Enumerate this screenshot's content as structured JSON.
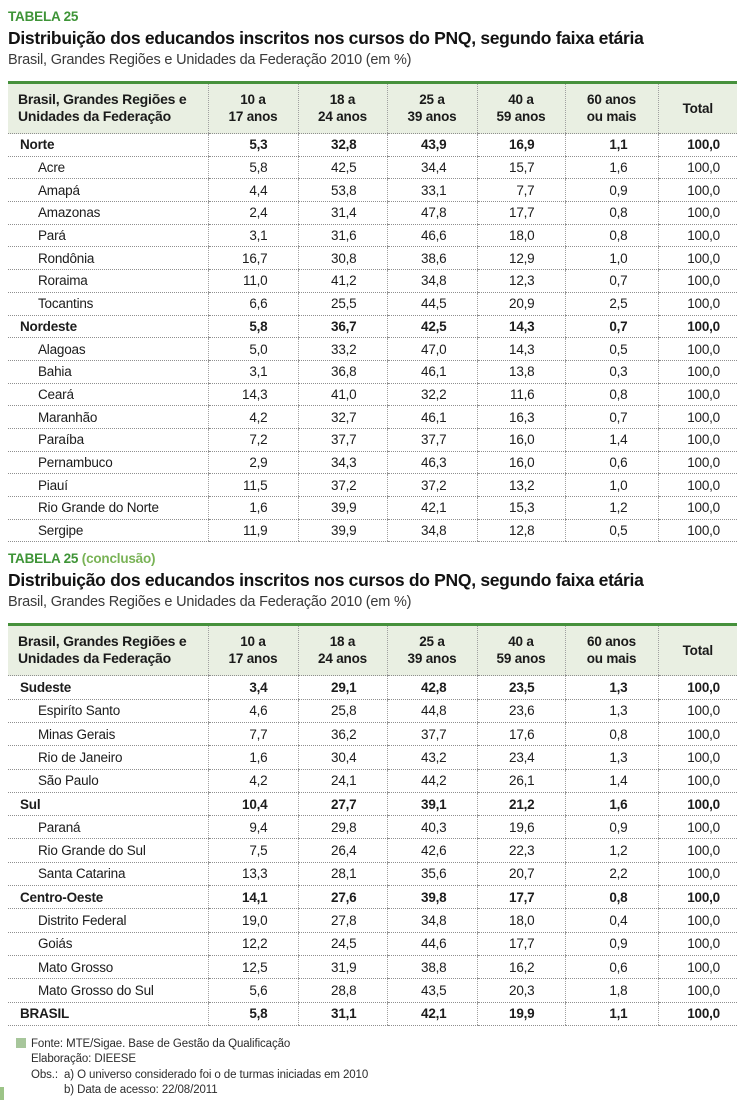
{
  "colors": {
    "accent_green": "#3e9437",
    "accent_green_light": "#79b356",
    "table_border_green": "#46913c",
    "header_band_bg": "#e9efe2",
    "note_bullet_green": "#a7c69b"
  },
  "table1": {
    "tag": "TABELA 25",
    "tag_suffix": "",
    "title": "Distribuição dos educandos inscritos nos cursos do PNQ, segundo faixa etária",
    "subtitle": "Brasil, Grandes Regiões e Unidades da Federação 2010 (em %)",
    "row_header": [
      "Brasil, Grandes Regiões e",
      "Unidades da Federação"
    ],
    "columns": [
      [
        "10 a",
        "17 anos"
      ],
      [
        "18 a",
        "24 anos"
      ],
      [
        "25 a",
        "39 anos"
      ],
      [
        "40 a",
        "59 anos"
      ],
      [
        "60 anos",
        "ou mais"
      ],
      [
        "Total"
      ]
    ],
    "rows": [
      {
        "label": "Norte",
        "bold": true,
        "indent": false,
        "values": [
          "5,3",
          "32,8",
          "43,9",
          "16,9",
          "1,1",
          "100,0"
        ]
      },
      {
        "label": "Acre",
        "bold": false,
        "indent": true,
        "values": [
          "5,8",
          "42,5",
          "34,4",
          "15,7",
          "1,6",
          "100,0"
        ]
      },
      {
        "label": "Amapá",
        "bold": false,
        "indent": true,
        "values": [
          "4,4",
          "53,8",
          "33,1",
          "7,7",
          "0,9",
          "100,0"
        ]
      },
      {
        "label": "Amazonas",
        "bold": false,
        "indent": true,
        "values": [
          "2,4",
          "31,4",
          "47,8",
          "17,7",
          "0,8",
          "100,0"
        ]
      },
      {
        "label": "Pará",
        "bold": false,
        "indent": true,
        "values": [
          "3,1",
          "31,6",
          "46,6",
          "18,0",
          "0,8",
          "100,0"
        ]
      },
      {
        "label": "Rondônia",
        "bold": false,
        "indent": true,
        "values": [
          "16,7",
          "30,8",
          "38,6",
          "12,9",
          "1,0",
          "100,0"
        ]
      },
      {
        "label": "Roraima",
        "bold": false,
        "indent": true,
        "values": [
          "11,0",
          "41,2",
          "34,8",
          "12,3",
          "0,7",
          "100,0"
        ]
      },
      {
        "label": "Tocantins",
        "bold": false,
        "indent": true,
        "values": [
          "6,6",
          "25,5",
          "44,5",
          "20,9",
          "2,5",
          "100,0"
        ]
      },
      {
        "label": "Nordeste",
        "bold": true,
        "indent": false,
        "values": [
          "5,8",
          "36,7",
          "42,5",
          "14,3",
          "0,7",
          "100,0"
        ]
      },
      {
        "label": "Alagoas",
        "bold": false,
        "indent": true,
        "values": [
          "5,0",
          "33,2",
          "47,0",
          "14,3",
          "0,5",
          "100,0"
        ]
      },
      {
        "label": "Bahia",
        "bold": false,
        "indent": true,
        "values": [
          "3,1",
          "36,8",
          "46,1",
          "13,8",
          "0,3",
          "100,0"
        ]
      },
      {
        "label": "Ceará",
        "bold": false,
        "indent": true,
        "values": [
          "14,3",
          "41,0",
          "32,2",
          "11,6",
          "0,8",
          "100,0"
        ]
      },
      {
        "label": "Maranhão",
        "bold": false,
        "indent": true,
        "values": [
          "4,2",
          "32,7",
          "46,1",
          "16,3",
          "0,7",
          "100,0"
        ]
      },
      {
        "label": "Paraíba",
        "bold": false,
        "indent": true,
        "values": [
          "7,2",
          "37,7",
          "37,7",
          "16,0",
          "1,4",
          "100,0"
        ]
      },
      {
        "label": "Pernambuco",
        "bold": false,
        "indent": true,
        "values": [
          "2,9",
          "34,3",
          "46,3",
          "16,0",
          "0,6",
          "100,0"
        ]
      },
      {
        "label": "Piauí",
        "bold": false,
        "indent": true,
        "values": [
          "11,5",
          "37,2",
          "37,2",
          "13,2",
          "1,0",
          "100,0"
        ]
      },
      {
        "label": "Rio Grande do Norte",
        "bold": false,
        "indent": true,
        "values": [
          "1,6",
          "39,9",
          "42,1",
          "15,3",
          "1,2",
          "100,0"
        ]
      },
      {
        "label": "Sergipe",
        "bold": false,
        "indent": true,
        "values": [
          "11,9",
          "39,9",
          "34,8",
          "12,8",
          "0,5",
          "100,0"
        ]
      }
    ]
  },
  "table2": {
    "tag": "TABELA 25",
    "tag_suffix": " (conclusão)",
    "title": "Distribuição dos educandos inscritos nos cursos do PNQ, segundo faixa etária",
    "subtitle": "Brasil, Grandes Regiões e Unidades da Federação 2010 (em %)",
    "row_header": [
      "Brasil, Grandes Regiões e",
      "Unidades da Federação"
    ],
    "columns": [
      [
        "10 a",
        "17 anos"
      ],
      [
        "18 a",
        "24 anos"
      ],
      [
        "25 a",
        "39 anos"
      ],
      [
        "40 a",
        "59 anos"
      ],
      [
        "60 anos",
        "ou mais"
      ],
      [
        "Total"
      ]
    ],
    "rows": [
      {
        "label": "Sudeste",
        "bold": true,
        "indent": false,
        "values": [
          "3,4",
          "29,1",
          "42,8",
          "23,5",
          "1,3",
          "100,0"
        ]
      },
      {
        "label": "Espiríto Santo",
        "bold": false,
        "indent": true,
        "values": [
          "4,6",
          "25,8",
          "44,8",
          "23,6",
          "1,3",
          "100,0"
        ]
      },
      {
        "label": "Minas Gerais",
        "bold": false,
        "indent": true,
        "values": [
          "7,7",
          "36,2",
          "37,7",
          "17,6",
          "0,8",
          "100,0"
        ]
      },
      {
        "label": "Rio de Janeiro",
        "bold": false,
        "indent": true,
        "values": [
          "1,6",
          "30,4",
          "43,2",
          "23,4",
          "1,3",
          "100,0"
        ]
      },
      {
        "label": "São Paulo",
        "bold": false,
        "indent": true,
        "values": [
          "4,2",
          "24,1",
          "44,2",
          "26,1",
          "1,4",
          "100,0"
        ]
      },
      {
        "label": "Sul",
        "bold": true,
        "indent": false,
        "values": [
          "10,4",
          "27,7",
          "39,1",
          "21,2",
          "1,6",
          "100,0"
        ]
      },
      {
        "label": "Paraná",
        "bold": false,
        "indent": true,
        "values": [
          "9,4",
          "29,8",
          "40,3",
          "19,6",
          "0,9",
          "100,0"
        ]
      },
      {
        "label": "Rio Grande do Sul",
        "bold": false,
        "indent": true,
        "values": [
          "7,5",
          "26,4",
          "42,6",
          "22,3",
          "1,2",
          "100,0"
        ]
      },
      {
        "label": "Santa Catarina",
        "bold": false,
        "indent": true,
        "values": [
          "13,3",
          "28,1",
          "35,6",
          "20,7",
          "2,2",
          "100,0"
        ]
      },
      {
        "label": "Centro-Oeste",
        "bold": true,
        "indent": false,
        "values": [
          "14,1",
          "27,6",
          "39,8",
          "17,7",
          "0,8",
          "100,0"
        ]
      },
      {
        "label": "Distrito Federal",
        "bold": false,
        "indent": true,
        "values": [
          "19,0",
          "27,8",
          "34,8",
          "18,0",
          "0,4",
          "100,0"
        ]
      },
      {
        "label": "Goiás",
        "bold": false,
        "indent": true,
        "values": [
          "12,2",
          "24,5",
          "44,6",
          "17,7",
          "0,9",
          "100,0"
        ]
      },
      {
        "label": "Mato Grosso",
        "bold": false,
        "indent": true,
        "values": [
          "12,5",
          "31,9",
          "38,8",
          "16,2",
          "0,6",
          "100,0"
        ]
      },
      {
        "label": "Mato Grosso do Sul",
        "bold": false,
        "indent": true,
        "values": [
          "5,6",
          "28,8",
          "43,5",
          "20,3",
          "1,8",
          "100,0"
        ]
      },
      {
        "label": "BRASIL",
        "bold": true,
        "indent": false,
        "values": [
          "5,8",
          "31,1",
          "42,1",
          "19,9",
          "1,1",
          "100,0"
        ]
      }
    ]
  },
  "footer": {
    "fonte": "Fonte: MTE/Sigae. Base de Gestão da Qualificação",
    "elaboracao": "Elaboração: DIEESE",
    "obs_label": "Obs.:",
    "obs_a": "a) O universo considerado foi o de turmas iniciadas em 2010",
    "obs_b": "b) Data de acesso: 22/08/2011"
  }
}
